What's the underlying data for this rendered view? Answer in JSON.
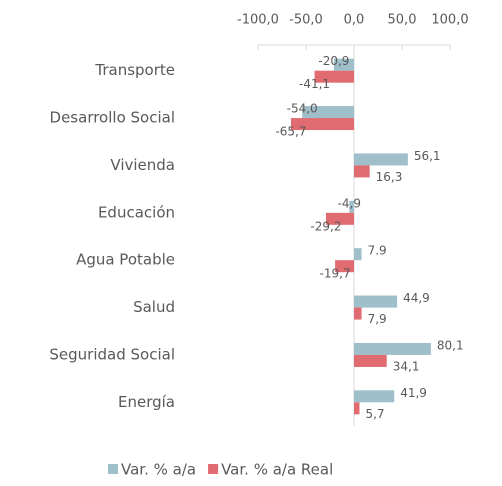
{
  "chart_data": {
    "type": "bar",
    "orientation": "horizontal",
    "categories": [
      "Transporte",
      "Desarrollo Social",
      "Vivienda",
      "Educación",
      "Agua Potable",
      "Salud",
      "Seguridad Social",
      "Energía"
    ],
    "series": [
      {
        "name": "Var.  % a/a",
        "color": "#9fbfca",
        "values": [
          -20.9,
          -54.0,
          56.1,
          -4.9,
          7.9,
          44.9,
          80.1,
          41.9
        ],
        "value_labels": [
          "-20,9",
          "-54,0",
          "56,1",
          "-4,9",
          "7.9",
          "44,9",
          "80,1",
          "41,9"
        ]
      },
      {
        "name": "Var. % a/a Real",
        "color": "#e06b70",
        "values": [
          -41.1,
          -65.7,
          16.3,
          -29.2,
          -19.7,
          7.9,
          34.1,
          5.7
        ],
        "value_labels": [
          "-41,1",
          "-65,7",
          "16,3",
          "-29,2",
          "-19,7",
          "7,9",
          "34,1",
          "5,7"
        ]
      }
    ],
    "xlim": [
      -100,
      100
    ],
    "xticks": [
      {
        "value": -100,
        "label": "-100,0"
      },
      {
        "value": -50,
        "label": "-50,0"
      },
      {
        "value": 0,
        "label": "0,0"
      },
      {
        "value": 50,
        "label": "50,0"
      },
      {
        "value": 100,
        "label": "100,0"
      }
    ],
    "legend": "bottom"
  }
}
